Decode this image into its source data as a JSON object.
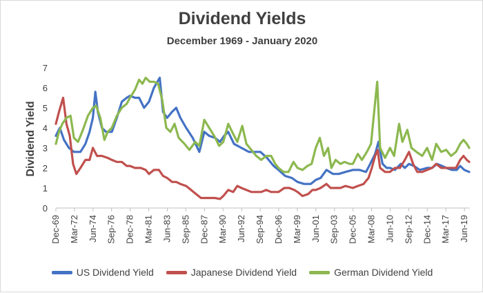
{
  "chart_data": {
    "type": "line",
    "title": "Dividend Yields",
    "subtitle": "December 1969 - January 2020",
    "ylabel": "Dividend Yield",
    "xlabel": "",
    "ylim": [
      0,
      7
    ],
    "yticks": [
      0,
      1,
      2,
      3,
      4,
      5,
      6,
      7
    ],
    "xlim": [
      1969.92,
      2020.08
    ],
    "xticks": [
      {
        "label": "Dec-69",
        "x": 1969.92
      },
      {
        "label": "Mar-72",
        "x": 1972.17
      },
      {
        "label": "Jun-74",
        "x": 1974.42
      },
      {
        "label": "Sep-76",
        "x": 1976.67
      },
      {
        "label": "Dec-78",
        "x": 1978.92
      },
      {
        "label": "Mar-81",
        "x": 1981.17
      },
      {
        "label": "Jun-83",
        "x": 1983.42
      },
      {
        "label": "Sep-85",
        "x": 1985.67
      },
      {
        "label": "Dec-87",
        "x": 1987.92
      },
      {
        "label": "Mar-90",
        "x": 1990.17
      },
      {
        "label": "Jun-92",
        "x": 1992.42
      },
      {
        "label": "Sep-94",
        "x": 1994.67
      },
      {
        "label": "Dec-96",
        "x": 1996.92
      },
      {
        "label": "Mar-99",
        "x": 1999.17
      },
      {
        "label": "Jun-01",
        "x": 2001.42
      },
      {
        "label": "Sep-03",
        "x": 2003.67
      },
      {
        "label": "Dec-05",
        "x": 2005.92
      },
      {
        "label": "Mar-08",
        "x": 2008.17
      },
      {
        "label": "Jun-10",
        "x": 2010.42
      },
      {
        "label": "Sep-12",
        "x": 2012.67
      },
      {
        "label": "Dec-14",
        "x": 2014.92
      },
      {
        "label": "Mar-17",
        "x": 2017.17
      },
      {
        "label": "Jun-19",
        "x": 2019.42
      }
    ],
    "grid": false,
    "legend_position": "bottom",
    "series": [
      {
        "name": "US Dividend Yield",
        "color": "#4472c4",
        "points": [
          [
            1969.92,
            3.6
          ],
          [
            1970.4,
            4.0
          ],
          [
            1970.9,
            3.4
          ],
          [
            1971.5,
            3.0
          ],
          [
            1972.1,
            2.8
          ],
          [
            1972.9,
            2.8
          ],
          [
            1973.5,
            3.2
          ],
          [
            1974.0,
            3.8
          ],
          [
            1974.4,
            4.5
          ],
          [
            1974.7,
            5.8
          ],
          [
            1975.0,
            4.8
          ],
          [
            1975.5,
            4.0
          ],
          [
            1976.0,
            3.8
          ],
          [
            1976.7,
            3.8
          ],
          [
            1977.3,
            4.5
          ],
          [
            1977.9,
            5.3
          ],
          [
            1978.5,
            5.5
          ],
          [
            1978.9,
            5.6
          ],
          [
            1979.5,
            5.5
          ],
          [
            1980.0,
            5.5
          ],
          [
            1980.6,
            5.0
          ],
          [
            1981.2,
            5.3
          ],
          [
            1981.8,
            6.0
          ],
          [
            1982.5,
            6.5
          ],
          [
            1982.9,
            4.8
          ],
          [
            1983.4,
            4.5
          ],
          [
            1984.0,
            4.8
          ],
          [
            1984.5,
            5.0
          ],
          [
            1985.0,
            4.5
          ],
          [
            1985.7,
            4.0
          ],
          [
            1986.5,
            3.5
          ],
          [
            1987.3,
            2.8
          ],
          [
            1987.9,
            3.8
          ],
          [
            1988.5,
            3.6
          ],
          [
            1989.2,
            3.5
          ],
          [
            1989.8,
            3.3
          ],
          [
            1990.3,
            3.6
          ],
          [
            1990.8,
            3.8
          ],
          [
            1991.5,
            3.2
          ],
          [
            1992.4,
            3.0
          ],
          [
            1993.3,
            2.8
          ],
          [
            1994.0,
            2.8
          ],
          [
            1994.7,
            2.8
          ],
          [
            1995.5,
            2.5
          ],
          [
            1996.3,
            2.1
          ],
          [
            1996.9,
            1.9
          ],
          [
            1997.7,
            1.6
          ],
          [
            1998.5,
            1.5
          ],
          [
            1999.2,
            1.3
          ],
          [
            2000.0,
            1.2
          ],
          [
            2000.8,
            1.2
          ],
          [
            2001.4,
            1.4
          ],
          [
            2002.0,
            1.5
          ],
          [
            2002.7,
            1.9
          ],
          [
            2003.5,
            1.7
          ],
          [
            2004.2,
            1.7
          ],
          [
            2005.0,
            1.8
          ],
          [
            2005.9,
            1.9
          ],
          [
            2006.7,
            1.9
          ],
          [
            2007.5,
            1.8
          ],
          [
            2008.0,
            2.2
          ],
          [
            2008.6,
            2.7
          ],
          [
            2009.0,
            3.3
          ],
          [
            2009.5,
            2.2
          ],
          [
            2010.0,
            2.0
          ],
          [
            2010.4,
            2.0
          ],
          [
            2011.0,
            1.9
          ],
          [
            2011.7,
            2.2
          ],
          [
            2012.2,
            2.0
          ],
          [
            2012.7,
            2.2
          ],
          [
            2013.3,
            2.1
          ],
          [
            2014.0,
            1.9
          ],
          [
            2014.9,
            2.0
          ],
          [
            2015.5,
            2.0
          ],
          [
            2016.1,
            2.2
          ],
          [
            2016.7,
            2.1
          ],
          [
            2017.2,
            2.0
          ],
          [
            2017.9,
            1.9
          ],
          [
            2018.5,
            1.9
          ],
          [
            2018.9,
            2.1
          ],
          [
            2019.4,
            1.9
          ],
          [
            2020.0,
            1.8
          ]
        ]
      },
      {
        "name": "Japanese Dividend Yield",
        "color": "#c0504d",
        "points": [
          [
            1969.92,
            4.2
          ],
          [
            1970.3,
            4.8
          ],
          [
            1970.8,
            5.5
          ],
          [
            1971.2,
            4.2
          ],
          [
            1971.6,
            3.6
          ],
          [
            1972.0,
            2.2
          ],
          [
            1972.4,
            1.7
          ],
          [
            1972.9,
            2.0
          ],
          [
            1973.5,
            2.4
          ],
          [
            1974.0,
            2.4
          ],
          [
            1974.4,
            3.0
          ],
          [
            1974.9,
            2.6
          ],
          [
            1975.5,
            2.6
          ],
          [
            1976.2,
            2.5
          ],
          [
            1976.7,
            2.4
          ],
          [
            1977.3,
            2.3
          ],
          [
            1977.9,
            2.3
          ],
          [
            1978.5,
            2.1
          ],
          [
            1978.9,
            2.1
          ],
          [
            1979.5,
            2.0
          ],
          [
            1980.2,
            2.0
          ],
          [
            1980.8,
            1.9
          ],
          [
            1981.2,
            1.7
          ],
          [
            1981.8,
            1.9
          ],
          [
            1982.4,
            1.9
          ],
          [
            1982.9,
            1.6
          ],
          [
            1983.4,
            1.5
          ],
          [
            1984.0,
            1.3
          ],
          [
            1984.5,
            1.3
          ],
          [
            1985.0,
            1.2
          ],
          [
            1985.7,
            1.1
          ],
          [
            1986.3,
            0.9
          ],
          [
            1986.9,
            0.7
          ],
          [
            1987.5,
            0.5
          ],
          [
            1987.9,
            0.5
          ],
          [
            1988.5,
            0.5
          ],
          [
            1989.2,
            0.5
          ],
          [
            1989.8,
            0.45
          ],
          [
            1990.2,
            0.6
          ],
          [
            1990.8,
            0.9
          ],
          [
            1991.4,
            0.8
          ],
          [
            1991.9,
            1.1
          ],
          [
            1992.4,
            1.0
          ],
          [
            1993.0,
            0.9
          ],
          [
            1993.6,
            0.8
          ],
          [
            1994.2,
            0.8
          ],
          [
            1994.8,
            0.8
          ],
          [
            1995.4,
            0.9
          ],
          [
            1996.0,
            0.8
          ],
          [
            1996.9,
            0.8
          ],
          [
            1997.6,
            1.0
          ],
          [
            1998.2,
            1.0
          ],
          [
            1998.8,
            0.9
          ],
          [
            1999.2,
            0.8
          ],
          [
            1999.8,
            0.6
          ],
          [
            2000.5,
            0.7
          ],
          [
            2001.0,
            0.9
          ],
          [
            2001.4,
            0.9
          ],
          [
            2002.0,
            1.0
          ],
          [
            2002.7,
            1.2
          ],
          [
            2003.2,
            1.0
          ],
          [
            2003.7,
            1.0
          ],
          [
            2004.4,
            1.0
          ],
          [
            2005.0,
            1.1
          ],
          [
            2005.9,
            1.0
          ],
          [
            2006.5,
            1.1
          ],
          [
            2007.2,
            1.2
          ],
          [
            2007.8,
            1.5
          ],
          [
            2008.2,
            2.0
          ],
          [
            2008.6,
            2.6
          ],
          [
            2008.9,
            2.9
          ],
          [
            2009.2,
            2.0
          ],
          [
            2009.8,
            1.8
          ],
          [
            2010.4,
            1.8
          ],
          [
            2011.0,
            2.0
          ],
          [
            2011.6,
            2.0
          ],
          [
            2012.2,
            2.4
          ],
          [
            2012.7,
            2.8
          ],
          [
            2013.2,
            2.2
          ],
          [
            2013.7,
            1.8
          ],
          [
            2014.3,
            1.8
          ],
          [
            2014.9,
            1.9
          ],
          [
            2015.5,
            2.0
          ],
          [
            2016.0,
            2.2
          ],
          [
            2016.6,
            2.0
          ],
          [
            2017.2,
            2.0
          ],
          [
            2017.8,
            2.0
          ],
          [
            2018.4,
            2.0
          ],
          [
            2018.9,
            2.4
          ],
          [
            2019.3,
            2.6
          ],
          [
            2019.7,
            2.4
          ],
          [
            2020.0,
            2.3
          ]
        ]
      },
      {
        "name": "German Dividend Yield",
        "color": "#8cb84f",
        "points": [
          [
            1969.92,
            3.2
          ],
          [
            1970.3,
            3.8
          ],
          [
            1970.7,
            4.2
          ],
          [
            1971.2,
            4.5
          ],
          [
            1971.7,
            4.6
          ],
          [
            1972.1,
            3.5
          ],
          [
            1972.6,
            3.3
          ],
          [
            1973.2,
            3.9
          ],
          [
            1973.8,
            4.6
          ],
          [
            1974.4,
            5.0
          ],
          [
            1974.8,
            5.1
          ],
          [
            1975.3,
            4.5
          ],
          [
            1975.8,
            3.4
          ],
          [
            1976.2,
            3.8
          ],
          [
            1976.7,
            4.0
          ],
          [
            1977.3,
            4.6
          ],
          [
            1977.9,
            5.0
          ],
          [
            1978.5,
            5.2
          ],
          [
            1978.9,
            5.5
          ],
          [
            1979.5,
            5.9
          ],
          [
            1980.0,
            6.4
          ],
          [
            1980.4,
            6.2
          ],
          [
            1980.8,
            6.5
          ],
          [
            1981.3,
            6.3
          ],
          [
            1981.8,
            6.3
          ],
          [
            1982.3,
            6.2
          ],
          [
            1982.8,
            5.4
          ],
          [
            1983.3,
            4.0
          ],
          [
            1983.8,
            3.8
          ],
          [
            1984.3,
            4.2
          ],
          [
            1984.8,
            3.5
          ],
          [
            1985.5,
            3.2
          ],
          [
            1986.1,
            2.9
          ],
          [
            1986.8,
            3.3
          ],
          [
            1987.3,
            3.1
          ],
          [
            1987.9,
            4.4
          ],
          [
            1988.5,
            4.0
          ],
          [
            1989.1,
            3.6
          ],
          [
            1989.7,
            3.1
          ],
          [
            1990.2,
            3.3
          ],
          [
            1990.8,
            4.2
          ],
          [
            1991.4,
            3.7
          ],
          [
            1991.9,
            3.3
          ],
          [
            1992.5,
            4.1
          ],
          [
            1993.0,
            3.2
          ],
          [
            1993.6,
            2.9
          ],
          [
            1994.2,
            2.6
          ],
          [
            1994.8,
            2.4
          ],
          [
            1995.4,
            2.6
          ],
          [
            1996.0,
            2.6
          ],
          [
            1996.5,
            2.2
          ],
          [
            1996.9,
            2.0
          ],
          [
            1997.5,
            1.8
          ],
          [
            1998.1,
            1.8
          ],
          [
            1998.7,
            2.3
          ],
          [
            1999.2,
            2.0
          ],
          [
            1999.8,
            1.9
          ],
          [
            2000.4,
            2.1
          ],
          [
            2000.9,
            2.2
          ],
          [
            2001.4,
            3.0
          ],
          [
            2001.9,
            3.5
          ],
          [
            2002.4,
            2.6
          ],
          [
            2002.9,
            3.0
          ],
          [
            2003.3,
            2.0
          ],
          [
            2003.8,
            2.4
          ],
          [
            2004.4,
            2.2
          ],
          [
            2004.9,
            2.3
          ],
          [
            2005.5,
            2.2
          ],
          [
            2005.9,
            2.2
          ],
          [
            2006.5,
            2.7
          ],
          [
            2007.0,
            2.4
          ],
          [
            2007.6,
            2.8
          ],
          [
            2008.1,
            3.2
          ],
          [
            2008.6,
            5.3
          ],
          [
            2008.85,
            6.3
          ],
          [
            2009.2,
            3.0
          ],
          [
            2009.8,
            2.5
          ],
          [
            2010.4,
            3.0
          ],
          [
            2010.9,
            2.6
          ],
          [
            2011.5,
            4.2
          ],
          [
            2011.9,
            3.3
          ],
          [
            2012.5,
            3.9
          ],
          [
            2013.0,
            3.0
          ],
          [
            2013.6,
            2.8
          ],
          [
            2014.3,
            2.6
          ],
          [
            2014.9,
            3.0
          ],
          [
            2015.5,
            2.4
          ],
          [
            2016.0,
            3.2
          ],
          [
            2016.6,
            2.8
          ],
          [
            2017.2,
            2.9
          ],
          [
            2017.8,
            2.6
          ],
          [
            2018.4,
            2.8
          ],
          [
            2018.9,
            3.2
          ],
          [
            2019.3,
            3.4
          ],
          [
            2019.7,
            3.2
          ],
          [
            2020.0,
            3.0
          ]
        ]
      }
    ]
  }
}
